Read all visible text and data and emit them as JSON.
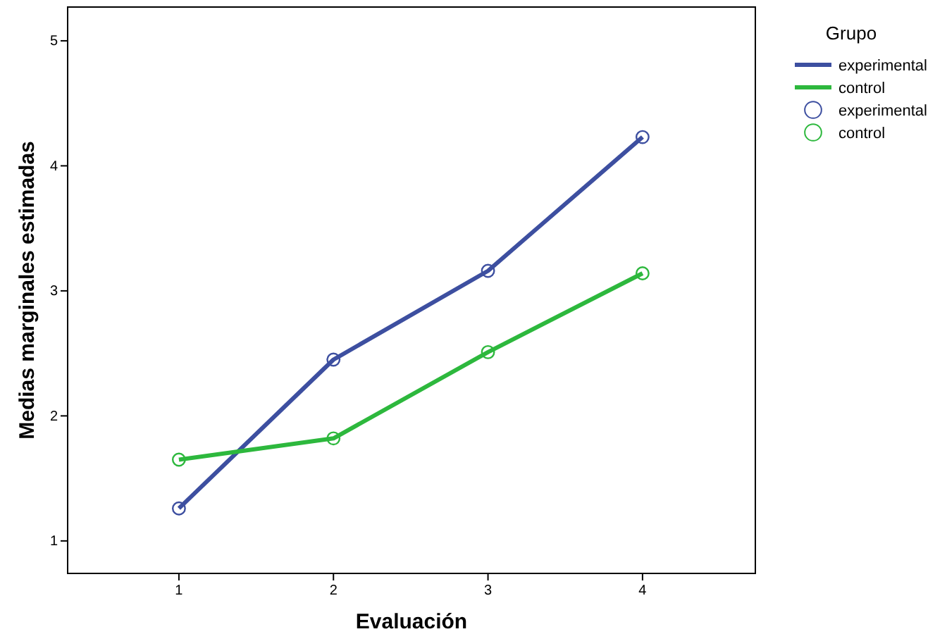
{
  "chart_data": {
    "type": "line",
    "xlabel": "Evaluación",
    "ylabel": "Medias marginales estimadas",
    "legend_title": "Grupo",
    "legend": "top right",
    "x": [
      1,
      2,
      3,
      4
    ],
    "xlim": [
      0.28,
      4.73
    ],
    "xticks": [
      1,
      2,
      3,
      4
    ],
    "ylim": [
      0.74,
      5.27
    ],
    "yticks": [
      1,
      2,
      3,
      4,
      5
    ],
    "grid": false,
    "series": [
      {
        "name": "experimental",
        "color": "#3d4fa0",
        "values": [
          1.26,
          2.45,
          3.16,
          4.23
        ]
      },
      {
        "name": "control",
        "color": "#2db83d",
        "values": [
          1.65,
          1.82,
          2.51,
          3.14
        ]
      },
      {
        "name": "experimental",
        "color": "#3d4fa0",
        "type": "scatter",
        "marker": "circle",
        "values": [
          1.26,
          2.45,
          3.16,
          4.23
        ]
      },
      {
        "name": "control",
        "color": "#2db83d",
        "type": "scatter",
        "marker": "circle",
        "values": [
          1.65,
          1.82,
          2.51,
          3.14
        ]
      }
    ]
  }
}
